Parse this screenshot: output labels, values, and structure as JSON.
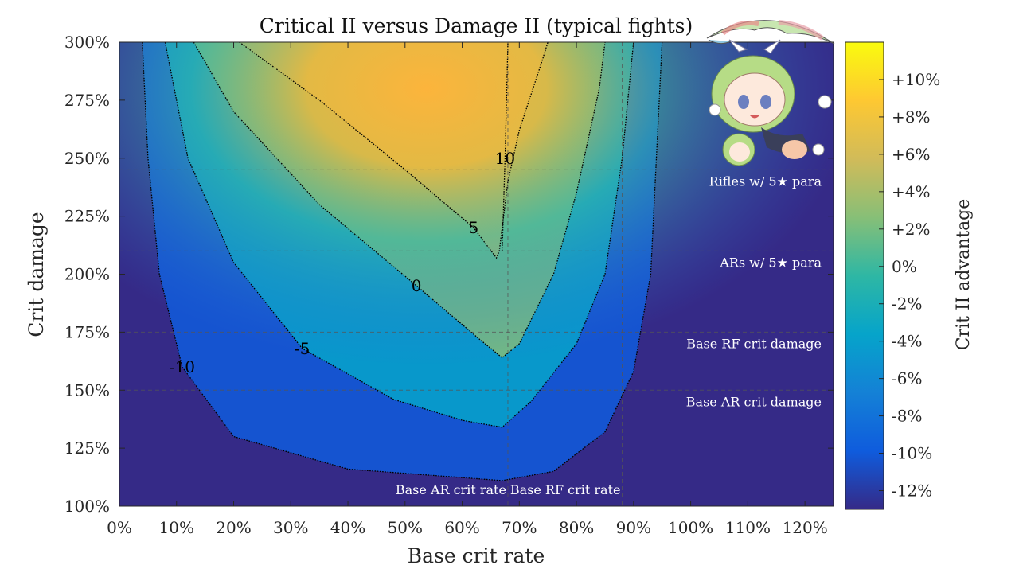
{
  "chart_data": {
    "type": "heatmap",
    "title": "Critical II versus Damage II (typical fights)",
    "xlabel": "Base crit rate",
    "ylabel": "Crit damage",
    "colorbar_label": "Crit II advantage",
    "xlim": [
      0,
      125
    ],
    "ylim": [
      100,
      300
    ],
    "xticks": [
      "0%",
      "10%",
      "20%",
      "30%",
      "40%",
      "50%",
      "60%",
      "70%",
      "80%",
      "90%",
      "100%",
      "110%",
      "120%"
    ],
    "xtick_values": [
      0,
      10,
      20,
      30,
      40,
      50,
      60,
      70,
      80,
      90,
      100,
      110,
      120
    ],
    "yticks": [
      "100%",
      "125%",
      "150%",
      "175%",
      "200%",
      "225%",
      "250%",
      "275%",
      "300%"
    ],
    "ytick_values": [
      100,
      125,
      150,
      175,
      200,
      225,
      250,
      275,
      300
    ],
    "colorbar_range": [
      -13,
      12
    ],
    "colorbar_ticks": [
      "+10%",
      "+8%",
      "+6%",
      "+4%",
      "+2%",
      "0%",
      "-2%",
      "-4%",
      "-6%",
      "-8%",
      "-10%",
      "-12%"
    ],
    "colorbar_tick_values": [
      10,
      8,
      6,
      4,
      2,
      0,
      -2,
      -4,
      -6,
      -8,
      -10,
      -12
    ],
    "colormap": "parula",
    "reference_lines": {
      "horizontal": [
        {
          "y": 245,
          "label": "Rifles w/ 5★ para"
        },
        {
          "y": 210,
          "label": "ARs w/ 5★ para"
        },
        {
          "y": 175,
          "label": "Base RF crit damage"
        },
        {
          "y": 150,
          "label": "Base AR crit damage"
        }
      ],
      "vertical": [
        {
          "x": 68,
          "label": "Base AR crit rate"
        },
        {
          "x": 88,
          "label": "Base RF crit rate"
        }
      ]
    },
    "contours": [
      {
        "level": 10,
        "label": "10",
        "points": [
          [
            67,
            210
          ],
          [
            67.5,
            250
          ],
          [
            68,
            300
          ]
        ]
      },
      {
        "level": 5,
        "label": "5",
        "points": [
          [
            21,
            300
          ],
          [
            35,
            275
          ],
          [
            50,
            245
          ],
          [
            62,
            220
          ],
          [
            66,
            207
          ],
          [
            66.5,
            210
          ],
          [
            68,
            240
          ],
          [
            70,
            262
          ],
          [
            74,
            292
          ],
          [
            75,
            300
          ]
        ]
      },
      {
        "level": 0,
        "label": "0",
        "points": [
          [
            13,
            300
          ],
          [
            20,
            270
          ],
          [
            35,
            230
          ],
          [
            52,
            195
          ],
          [
            63,
            172
          ],
          [
            67,
            164
          ],
          [
            70,
            170
          ],
          [
            76,
            200
          ],
          [
            80,
            235
          ],
          [
            84,
            280
          ],
          [
            85,
            300
          ]
        ]
      },
      {
        "level": -5,
        "label": "-5",
        "points": [
          [
            8,
            300
          ],
          [
            12,
            250
          ],
          [
            20,
            205
          ],
          [
            32,
            168
          ],
          [
            48,
            146
          ],
          [
            60,
            137
          ],
          [
            67,
            134
          ],
          [
            72,
            145
          ],
          [
            80,
            170
          ],
          [
            85,
            200
          ],
          [
            88,
            250
          ],
          [
            90,
            300
          ]
        ]
      },
      {
        "level": -10,
        "label": "-10",
        "points": [
          [
            4,
            300
          ],
          [
            5,
            250
          ],
          [
            7,
            200
          ],
          [
            11,
            160
          ],
          [
            20,
            130
          ],
          [
            40,
            116
          ],
          [
            67,
            111
          ],
          [
            76,
            115
          ],
          [
            85,
            132
          ],
          [
            90,
            158
          ],
          [
            93,
            200
          ],
          [
            94,
            250
          ],
          [
            95,
            300
          ]
        ]
      }
    ]
  },
  "colors": {
    "parula_stops": [
      "#352a87",
      "#0f5cdd",
      "#1481d6",
      "#06a4ca",
      "#2eb7a4",
      "#87bf77",
      "#d1bb59",
      "#fec832",
      "#f9fb0e"
    ],
    "contour": "#000000",
    "reference_line": "#555555",
    "reference_label": "#ffffff"
  },
  "decoration": {
    "mascot": "chibi-anime-girl-parachute-illustration"
  }
}
